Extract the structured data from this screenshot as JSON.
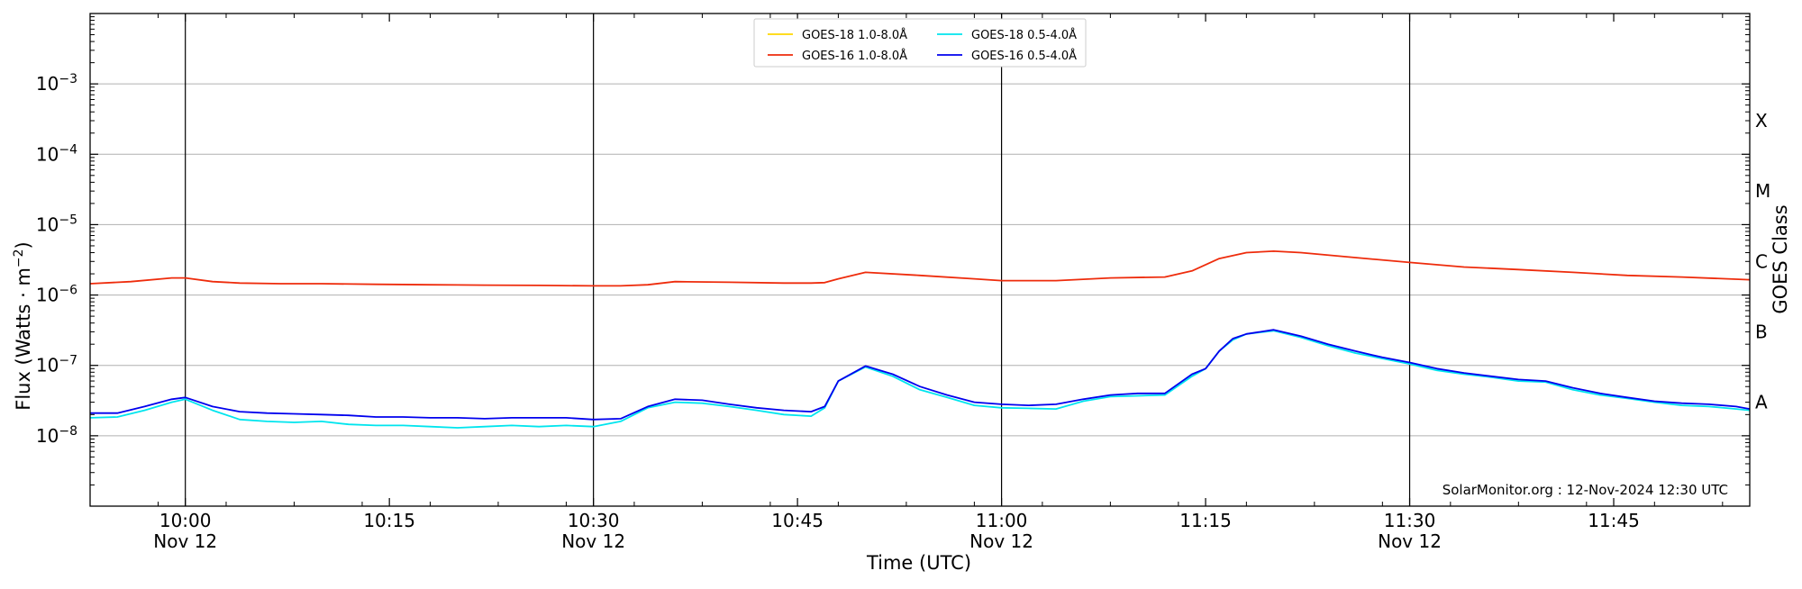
{
  "chart_data": {
    "type": "line",
    "xlabel": "Time (UTC)",
    "ylabel_main": "Flux (Watts · m",
    "ylabel_exp": "−2",
    "ylabel_close": ")",
    "ylabel_right": "GOES Class",
    "y_scale": "log",
    "ylim": [
      1e-09,
      0.01
    ],
    "xlim": [
      "09:53",
      "11:55"
    ],
    "grid": "horizontal at decades",
    "legend_position": "top-center",
    "y_ticks": [
      {
        "value": 1e-08,
        "base": "10",
        "exp": "−8"
      },
      {
        "value": 1e-07,
        "base": "10",
        "exp": "−7"
      },
      {
        "value": 1e-06,
        "base": "10",
        "exp": "−6"
      },
      {
        "value": 1e-05,
        "base": "10",
        "exp": "−5"
      },
      {
        "value": 0.0001,
        "base": "10",
        "exp": "−4"
      },
      {
        "value": 0.001,
        "base": "10",
        "exp": "−3"
      }
    ],
    "x_ticks": [
      {
        "time": "10:00",
        "label": "10:00",
        "sublabel": "Nov 12",
        "day_line": true
      },
      {
        "time": "10:15",
        "label": "10:15",
        "sublabel": "",
        "day_line": false
      },
      {
        "time": "10:30",
        "label": "10:30",
        "sublabel": "Nov 12",
        "day_line": true
      },
      {
        "time": "10:45",
        "label": "10:45",
        "sublabel": "",
        "day_line": false
      },
      {
        "time": "11:00",
        "label": "11:00",
        "sublabel": "Nov 12",
        "day_line": true
      },
      {
        "time": "11:15",
        "label": "11:15",
        "sublabel": "",
        "day_line": false
      },
      {
        "time": "11:30",
        "label": "11:30",
        "sublabel": "Nov 12",
        "day_line": true
      },
      {
        "time": "11:45",
        "label": "11:45",
        "sublabel": "",
        "day_line": false
      }
    ],
    "goes_classes": [
      {
        "label": "A",
        "value": 3e-08
      },
      {
        "label": "B",
        "value": 3e-07
      },
      {
        "label": "C",
        "value": 3e-06
      },
      {
        "label": "M",
        "value": 3e-05
      },
      {
        "label": "X",
        "value": 0.0003
      }
    ],
    "credit": "SolarMonitor.org : 12-Nov-2024 12:30 UTC",
    "series": [
      {
        "name": "GOES-18 1.0-8.0Å",
        "color": "#ffd700",
        "x": [],
        "y": []
      },
      {
        "name": "GOES-18 0.5-4.0Å",
        "color": "#00e5ee",
        "x": [
          "09:53",
          "09:55",
          "09:57",
          "09:59",
          "10:00",
          "10:02",
          "10:04",
          "10:06",
          "10:08",
          "10:10",
          "10:12",
          "10:14",
          "10:16",
          "10:18",
          "10:20",
          "10:22",
          "10:24",
          "10:26",
          "10:28",
          "10:30",
          "10:32",
          "10:34",
          "10:36",
          "10:38",
          "10:40",
          "10:42",
          "10:44",
          "10:46",
          "10:47",
          "10:48",
          "10:50",
          "10:52",
          "10:54",
          "10:56",
          "10:58",
          "11:00",
          "11:02",
          "11:04",
          "11:06",
          "11:08",
          "11:10",
          "11:12",
          "11:14",
          "11:15",
          "11:16",
          "11:17",
          "11:18",
          "11:20",
          "11:22",
          "11:24",
          "11:26",
          "11:28",
          "11:30",
          "11:32",
          "11:34",
          "11:36",
          "11:38",
          "11:40",
          "11:42",
          "11:44",
          "11:46",
          "11:48",
          "11:50",
          "11:52",
          "11:54",
          "11:55"
        ],
        "y": [
          1.8e-08,
          1.85e-08,
          2.3e-08,
          3e-08,
          3.3e-08,
          2.3e-08,
          1.7e-08,
          1.6e-08,
          1.55e-08,
          1.6e-08,
          1.45e-08,
          1.4e-08,
          1.4e-08,
          1.35e-08,
          1.3e-08,
          1.35e-08,
          1.4e-08,
          1.35e-08,
          1.4e-08,
          1.35e-08,
          1.6e-08,
          2.5e-08,
          3e-08,
          2.9e-08,
          2.6e-08,
          2.3e-08,
          2e-08,
          1.9e-08,
          2.5e-08,
          6e-08,
          9.5e-08,
          7e-08,
          4.5e-08,
          3.5e-08,
          2.7e-08,
          2.5e-08,
          2.45e-08,
          2.4e-08,
          3.1e-08,
          3.6e-08,
          3.7e-08,
          3.8e-08,
          7e-08,
          9e-08,
          1.6e-07,
          2.3e-07,
          2.8e-07,
          3.1e-07,
          2.5e-07,
          1.9e-07,
          1.5e-07,
          1.25e-07,
          1.05e-07,
          8.5e-08,
          7.5e-08,
          6.8e-08,
          6e-08,
          5.8e-08,
          4.5e-08,
          3.8e-08,
          3.4e-08,
          3e-08,
          2.7e-08,
          2.6e-08,
          2.4e-08,
          2.3e-08
        ]
      },
      {
        "name": "GOES-16 1.0-8.0Å",
        "color": "#ee2c0c",
        "x": [
          "09:53",
          "09:56",
          "09:59",
          "10:00",
          "10:02",
          "10:04",
          "10:07",
          "10:10",
          "10:14",
          "10:18",
          "10:22",
          "10:26",
          "10:30",
          "10:32",
          "10:34",
          "10:36",
          "10:40",
          "10:44",
          "10:46",
          "10:47",
          "10:48",
          "10:50",
          "10:54",
          "10:58",
          "11:00",
          "11:04",
          "11:08",
          "11:12",
          "11:14",
          "11:16",
          "11:18",
          "11:20",
          "11:22",
          "11:26",
          "11:30",
          "11:34",
          "11:38",
          "11:42",
          "11:46",
          "11:50",
          "11:55"
        ],
        "y": [
          1.45e-06,
          1.55e-06,
          1.75e-06,
          1.75e-06,
          1.55e-06,
          1.48e-06,
          1.45e-06,
          1.45e-06,
          1.42e-06,
          1.4e-06,
          1.38e-06,
          1.37e-06,
          1.35e-06,
          1.35e-06,
          1.4e-06,
          1.55e-06,
          1.52e-06,
          1.48e-06,
          1.48e-06,
          1.5e-06,
          1.7e-06,
          2.1e-06,
          1.9e-06,
          1.7e-06,
          1.6e-06,
          1.6e-06,
          1.75e-06,
          1.8e-06,
          2.2e-06,
          3.3e-06,
          4e-06,
          4.2e-06,
          4e-06,
          3.4e-06,
          2.9e-06,
          2.5e-06,
          2.3e-06,
          2.1e-06,
          1.9e-06,
          1.8e-06,
          1.65e-06
        ]
      },
      {
        "name": "GOES-16 0.5-4.0Å",
        "color": "#0000ee",
        "x": [
          "09:53",
          "09:55",
          "09:57",
          "09:59",
          "10:00",
          "10:02",
          "10:04",
          "10:06",
          "10:08",
          "10:10",
          "10:12",
          "10:14",
          "10:16",
          "10:18",
          "10:20",
          "10:22",
          "10:24",
          "10:26",
          "10:28",
          "10:30",
          "10:32",
          "10:34",
          "10:36",
          "10:38",
          "10:40",
          "10:42",
          "10:44",
          "10:46",
          "10:47",
          "10:48",
          "10:50",
          "10:52",
          "10:54",
          "10:56",
          "10:58",
          "11:00",
          "11:02",
          "11:04",
          "11:06",
          "11:08",
          "11:10",
          "11:12",
          "11:14",
          "11:15",
          "11:16",
          "11:17",
          "11:18",
          "11:20",
          "11:22",
          "11:24",
          "11:26",
          "11:28",
          "11:30",
          "11:32",
          "11:34",
          "11:36",
          "11:38",
          "11:40",
          "11:42",
          "11:44",
          "11:46",
          "11:48",
          "11:50",
          "11:52",
          "11:54",
          "11:55"
        ],
        "y": [
          2.1e-08,
          2.1e-08,
          2.6e-08,
          3.3e-08,
          3.5e-08,
          2.6e-08,
          2.2e-08,
          2.1e-08,
          2.05e-08,
          2e-08,
          1.95e-08,
          1.85e-08,
          1.85e-08,
          1.8e-08,
          1.8e-08,
          1.75e-08,
          1.8e-08,
          1.8e-08,
          1.8e-08,
          1.7e-08,
          1.75e-08,
          2.6e-08,
          3.3e-08,
          3.2e-08,
          2.8e-08,
          2.5e-08,
          2.3e-08,
          2.2e-08,
          2.6e-08,
          6e-08,
          9.8e-08,
          7.5e-08,
          5e-08,
          3.8e-08,
          3e-08,
          2.8e-08,
          2.7e-08,
          2.8e-08,
          3.3e-08,
          3.8e-08,
          4e-08,
          4e-08,
          7.5e-08,
          9e-08,
          1.6e-07,
          2.4e-07,
          2.8e-07,
          3.2e-07,
          2.6e-07,
          2e-07,
          1.6e-07,
          1.3e-07,
          1.1e-07,
          9e-08,
          7.8e-08,
          7e-08,
          6.3e-08,
          6e-08,
          4.8e-08,
          4e-08,
          3.5e-08,
          3.1e-08,
          2.9e-08,
          2.8e-08,
          2.6e-08,
          2.4e-08
        ]
      }
    ]
  }
}
